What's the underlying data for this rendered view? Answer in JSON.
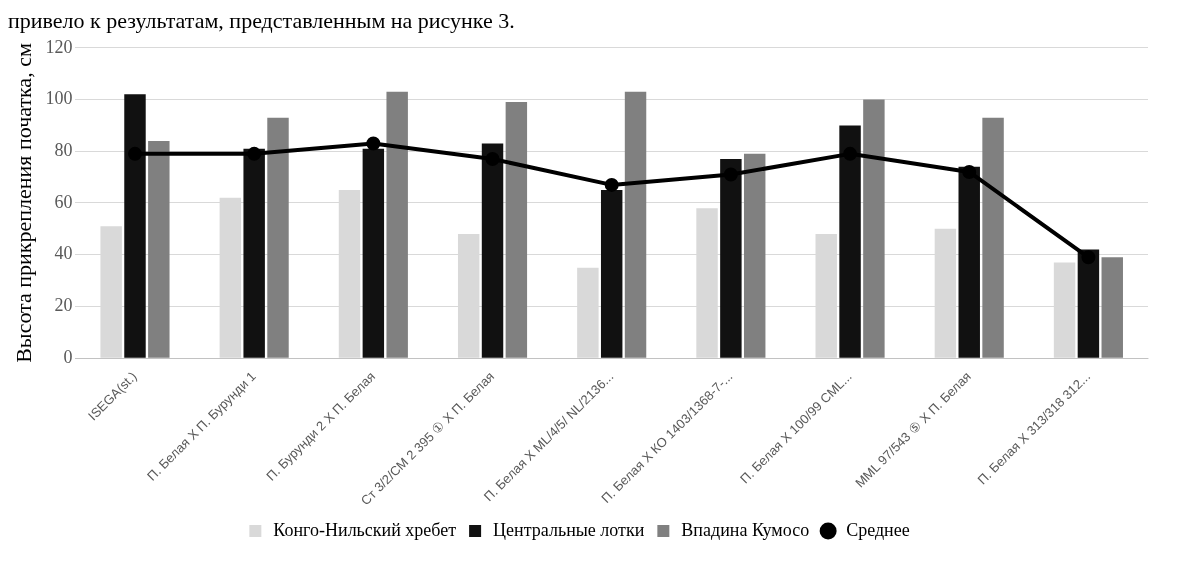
{
  "chart_data": {
    "type": "bar",
    "annotations": [
      "привело к результатам, представленным на рисунке 3."
    ],
    "ylabel": "Высота прикрепления початка, см",
    "categories": [
      "ISEGA(st.)",
      "П. Белая Х П. Бурунди 1",
      "П. Бурунди 2 Х П. Белая",
      "Ст 3/2/СМ 2 395 ① Х П. Белая",
      "П. Белая Х ML/4/5/ NL/2136...",
      "П. Белая Х КО 1403/1368-7-...",
      "П. Белая Х 100/99 CML...",
      "MML 97/543 ⑤ Х П. Белая",
      "П. Белая Х 313/318 312..."
    ],
    "series": [
      {
        "name": "Конго-Нильский хребет",
        "color": "#d9d9d9",
        "values": [
          51,
          62,
          65,
          48,
          35,
          58,
          48,
          50,
          37
        ]
      },
      {
        "name": "Центральные лотки",
        "color": "#111111",
        "values": [
          102,
          81,
          81,
          83,
          65,
          77,
          90,
          74,
          42
        ]
      },
      {
        "name": "Впадина Кумосо",
        "color": "#808080",
        "values": [
          84,
          93,
          103,
          99,
          103,
          79,
          100,
          93,
          39
        ]
      },
      {
        "name": "Среднее",
        "type": "line",
        "color": "#000000",
        "values": [
          79,
          79,
          83,
          77,
          67,
          71,
          79,
          72,
          39
        ]
      }
    ],
    "ylim": [
      0,
      120
    ],
    "yticks": [
      0,
      20,
      40,
      60,
      80,
      100,
      120
    ],
    "grid": "y",
    "legend": "bottom",
    "marker": "circle"
  }
}
